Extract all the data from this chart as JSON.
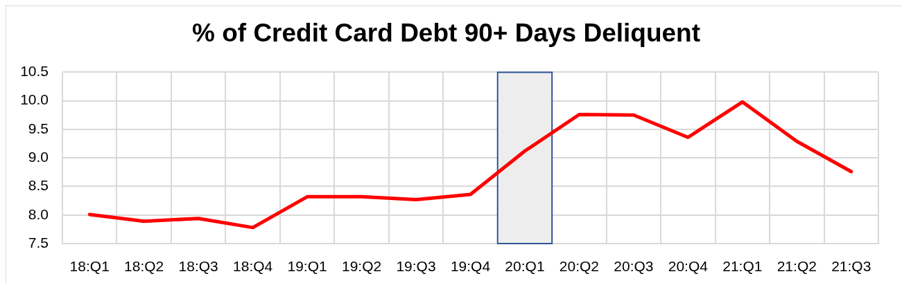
{
  "chart_data": {
    "type": "line",
    "title": "% of Credit Card Debt 90+ Days Deliquent",
    "categories": [
      "18:Q1",
      "18:Q2",
      "18:Q3",
      "18:Q4",
      "19:Q1",
      "19:Q2",
      "19:Q3",
      "19:Q4",
      "20:Q1",
      "20:Q2",
      "20:Q3",
      "20:Q4",
      "21:Q1",
      "21:Q2",
      "21:Q3"
    ],
    "series": [
      {
        "color": "#ff0000",
        "values": [
          8.01,
          7.89,
          7.94,
          7.78,
          8.32,
          8.32,
          8.27,
          8.36,
          9.12,
          9.76,
          9.75,
          9.36,
          9.98,
          9.29,
          8.76
        ]
      }
    ],
    "ylim": [
      7.5,
      10.5
    ],
    "yticks": [
      7.5,
      {
        "value": 8,
        "label": "8.0"
      },
      8.5,
      {
        "value": 9,
        "label": "9.0"
      },
      9.5,
      {
        "value": 10,
        "label": "10.0"
      },
      10.5
    ],
    "bands": [
      {
        "axis": "x",
        "from": "20:Q1",
        "to": "20:Q1",
        "color": "#ededed"
      }
    ],
    "grid": true,
    "marker": "none",
    "line_style": "solid"
  }
}
